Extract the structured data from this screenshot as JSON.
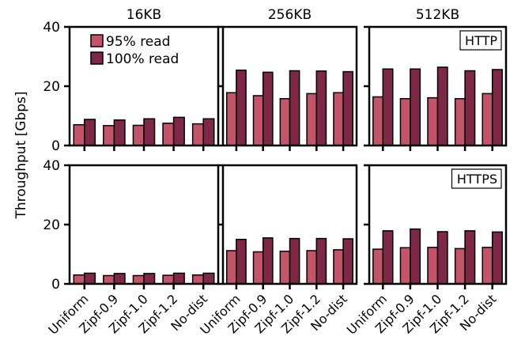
{
  "chart_data": {
    "type": "bar",
    "ylabel": "Throughput [Gbps]",
    "ylim": [
      0,
      40
    ],
    "yticks": [
      0,
      20,
      40
    ],
    "grid": false,
    "legend_position": "top-left",
    "columns": [
      "16KB",
      "256KB",
      "512KB"
    ],
    "rows": [
      "HTTP",
      "HTTPS"
    ],
    "categories": [
      "Uniform",
      "Zipf-0.9",
      "Zipf-1.0",
      "Zipf-1.2",
      "No-dist"
    ],
    "series": [
      {
        "name": "95% read",
        "color": "#c4546a"
      },
      {
        "name": "100% read",
        "color": "#7e2747"
      }
    ],
    "panels": [
      {
        "row": "HTTP",
        "column": "16KB",
        "values": {
          "95% read": [
            7,
            6.7,
            6.8,
            7.5,
            7.3
          ],
          "100% read": [
            8.8,
            8.6,
            9,
            9.5,
            9
          ]
        }
      },
      {
        "row": "HTTP",
        "column": "256KB",
        "values": {
          "95% read": [
            17.8,
            16.8,
            15.8,
            17.5,
            17.8
          ],
          "100% read": [
            25.4,
            24.7,
            25.2,
            25.1,
            24.9
          ]
        }
      },
      {
        "row": "HTTP",
        "column": "512KB",
        "values": {
          "95% read": [
            16.4,
            15.8,
            16.1,
            15.8,
            17.5
          ],
          "100% read": [
            25.8,
            25.8,
            26.4,
            25.2,
            25.6
          ]
        }
      },
      {
        "row": "HTTPS",
        "column": "16KB",
        "values": {
          "95% read": [
            3,
            2.8,
            2.8,
            2.9,
            3
          ],
          "100% read": [
            3.6,
            3.5,
            3.5,
            3.6,
            3.6
          ]
        }
      },
      {
        "row": "HTTPS",
        "column": "256KB",
        "values": {
          "95% read": [
            11.2,
            10.8,
            11,
            11.2,
            11.5
          ],
          "100% read": [
            15,
            15.5,
            15.3,
            15.3,
            15.2
          ]
        }
      },
      {
        "row": "HTTPS",
        "column": "512KB",
        "values": {
          "95% read": [
            11.7,
            12.2,
            12.3,
            11.9,
            12.3
          ],
          "100% read": [
            17.9,
            18.5,
            17.6,
            17.9,
            17.5
          ]
        }
      }
    ]
  }
}
